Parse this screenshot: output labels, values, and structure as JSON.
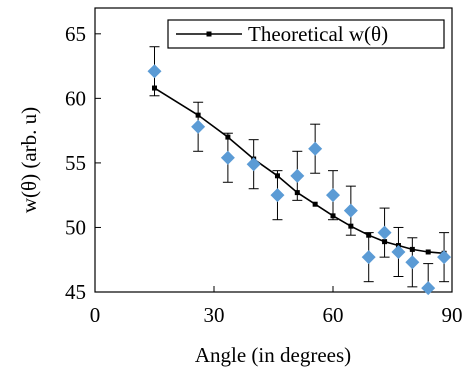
{
  "chart_data": {
    "type": "scatter",
    "title": "",
    "xlabel": "Angle (in degrees)",
    "ylabel": "w(θ) (arb. u)",
    "xlim": [
      0,
      90
    ],
    "ylim": [
      45,
      67
    ],
    "x_ticks": [
      0,
      30,
      60,
      90
    ],
    "y_ticks": [
      45,
      50,
      55,
      60,
      65
    ],
    "grid": false,
    "legend_position": "top-right",
    "series": [
      {
        "name": "Theoretical w(θ)",
        "kind": "line",
        "color": "#000000",
        "marker": "square",
        "x": [
          15,
          26,
          33.5,
          40,
          46,
          51,
          55.5,
          60,
          64.5,
          69,
          73,
          76.5,
          80,
          84,
          88
        ],
        "y": [
          60.8,
          58.7,
          57.0,
          55.3,
          54.0,
          52.7,
          51.8,
          50.9,
          50.1,
          49.4,
          48.9,
          48.6,
          48.3,
          48.1,
          48.0
        ]
      },
      {
        "name": "",
        "kind": "scatter",
        "color": "#5b9bd5",
        "marker": "diamond",
        "x": [
          15,
          26,
          33.5,
          40,
          46,
          51,
          55.5,
          60,
          64.5,
          69,
          73,
          76.5,
          80,
          84,
          88
        ],
        "y": [
          62.1,
          57.8,
          55.4,
          54.9,
          52.5,
          54.0,
          56.1,
          52.5,
          51.3,
          47.7,
          49.6,
          48.1,
          47.3,
          45.3,
          47.7
        ],
        "error": [
          1.9,
          1.9,
          1.9,
          1.9,
          1.9,
          1.9,
          1.9,
          1.9,
          1.9,
          1.9,
          1.9,
          1.9,
          1.9,
          1.9,
          1.9
        ]
      }
    ]
  }
}
